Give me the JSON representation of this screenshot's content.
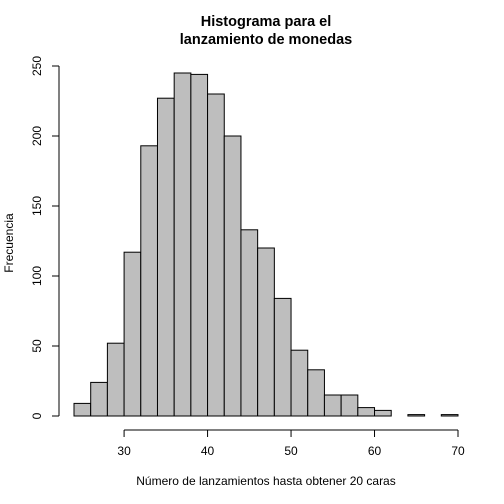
{
  "chart_data": {
    "type": "bar",
    "title_lines": [
      "Histograma para el",
      "lanzamiento de monedas"
    ],
    "xlabel": "Número de lanzamientos hasta obtener 20 caras",
    "ylabel": "Frecuencia",
    "bin_edges": [
      24,
      26,
      28,
      30,
      32,
      34,
      36,
      38,
      40,
      42,
      44,
      46,
      48,
      50,
      52,
      54,
      56,
      58,
      60,
      62,
      64,
      66,
      68,
      70
    ],
    "values": [
      9,
      24,
      52,
      117,
      193,
      227,
      245,
      244,
      230,
      200,
      133,
      120,
      84,
      47,
      33,
      15,
      15,
      6,
      4,
      0,
      1,
      0,
      1
    ],
    "xlim": [
      24,
      70
    ],
    "ylim": [
      0,
      250
    ],
    "x_ticks": [
      30,
      40,
      50,
      60,
      70
    ],
    "y_ticks": [
      0,
      50,
      100,
      150,
      200,
      250
    ],
    "x_tick_labels": [
      "30",
      "40",
      "50",
      "60",
      "70"
    ],
    "y_tick_labels": [
      "0",
      "50",
      "100",
      "150",
      "200",
      "250"
    ],
    "grid": false,
    "bar_fill": "#bebebe",
    "bar_stroke": "#000000"
  }
}
